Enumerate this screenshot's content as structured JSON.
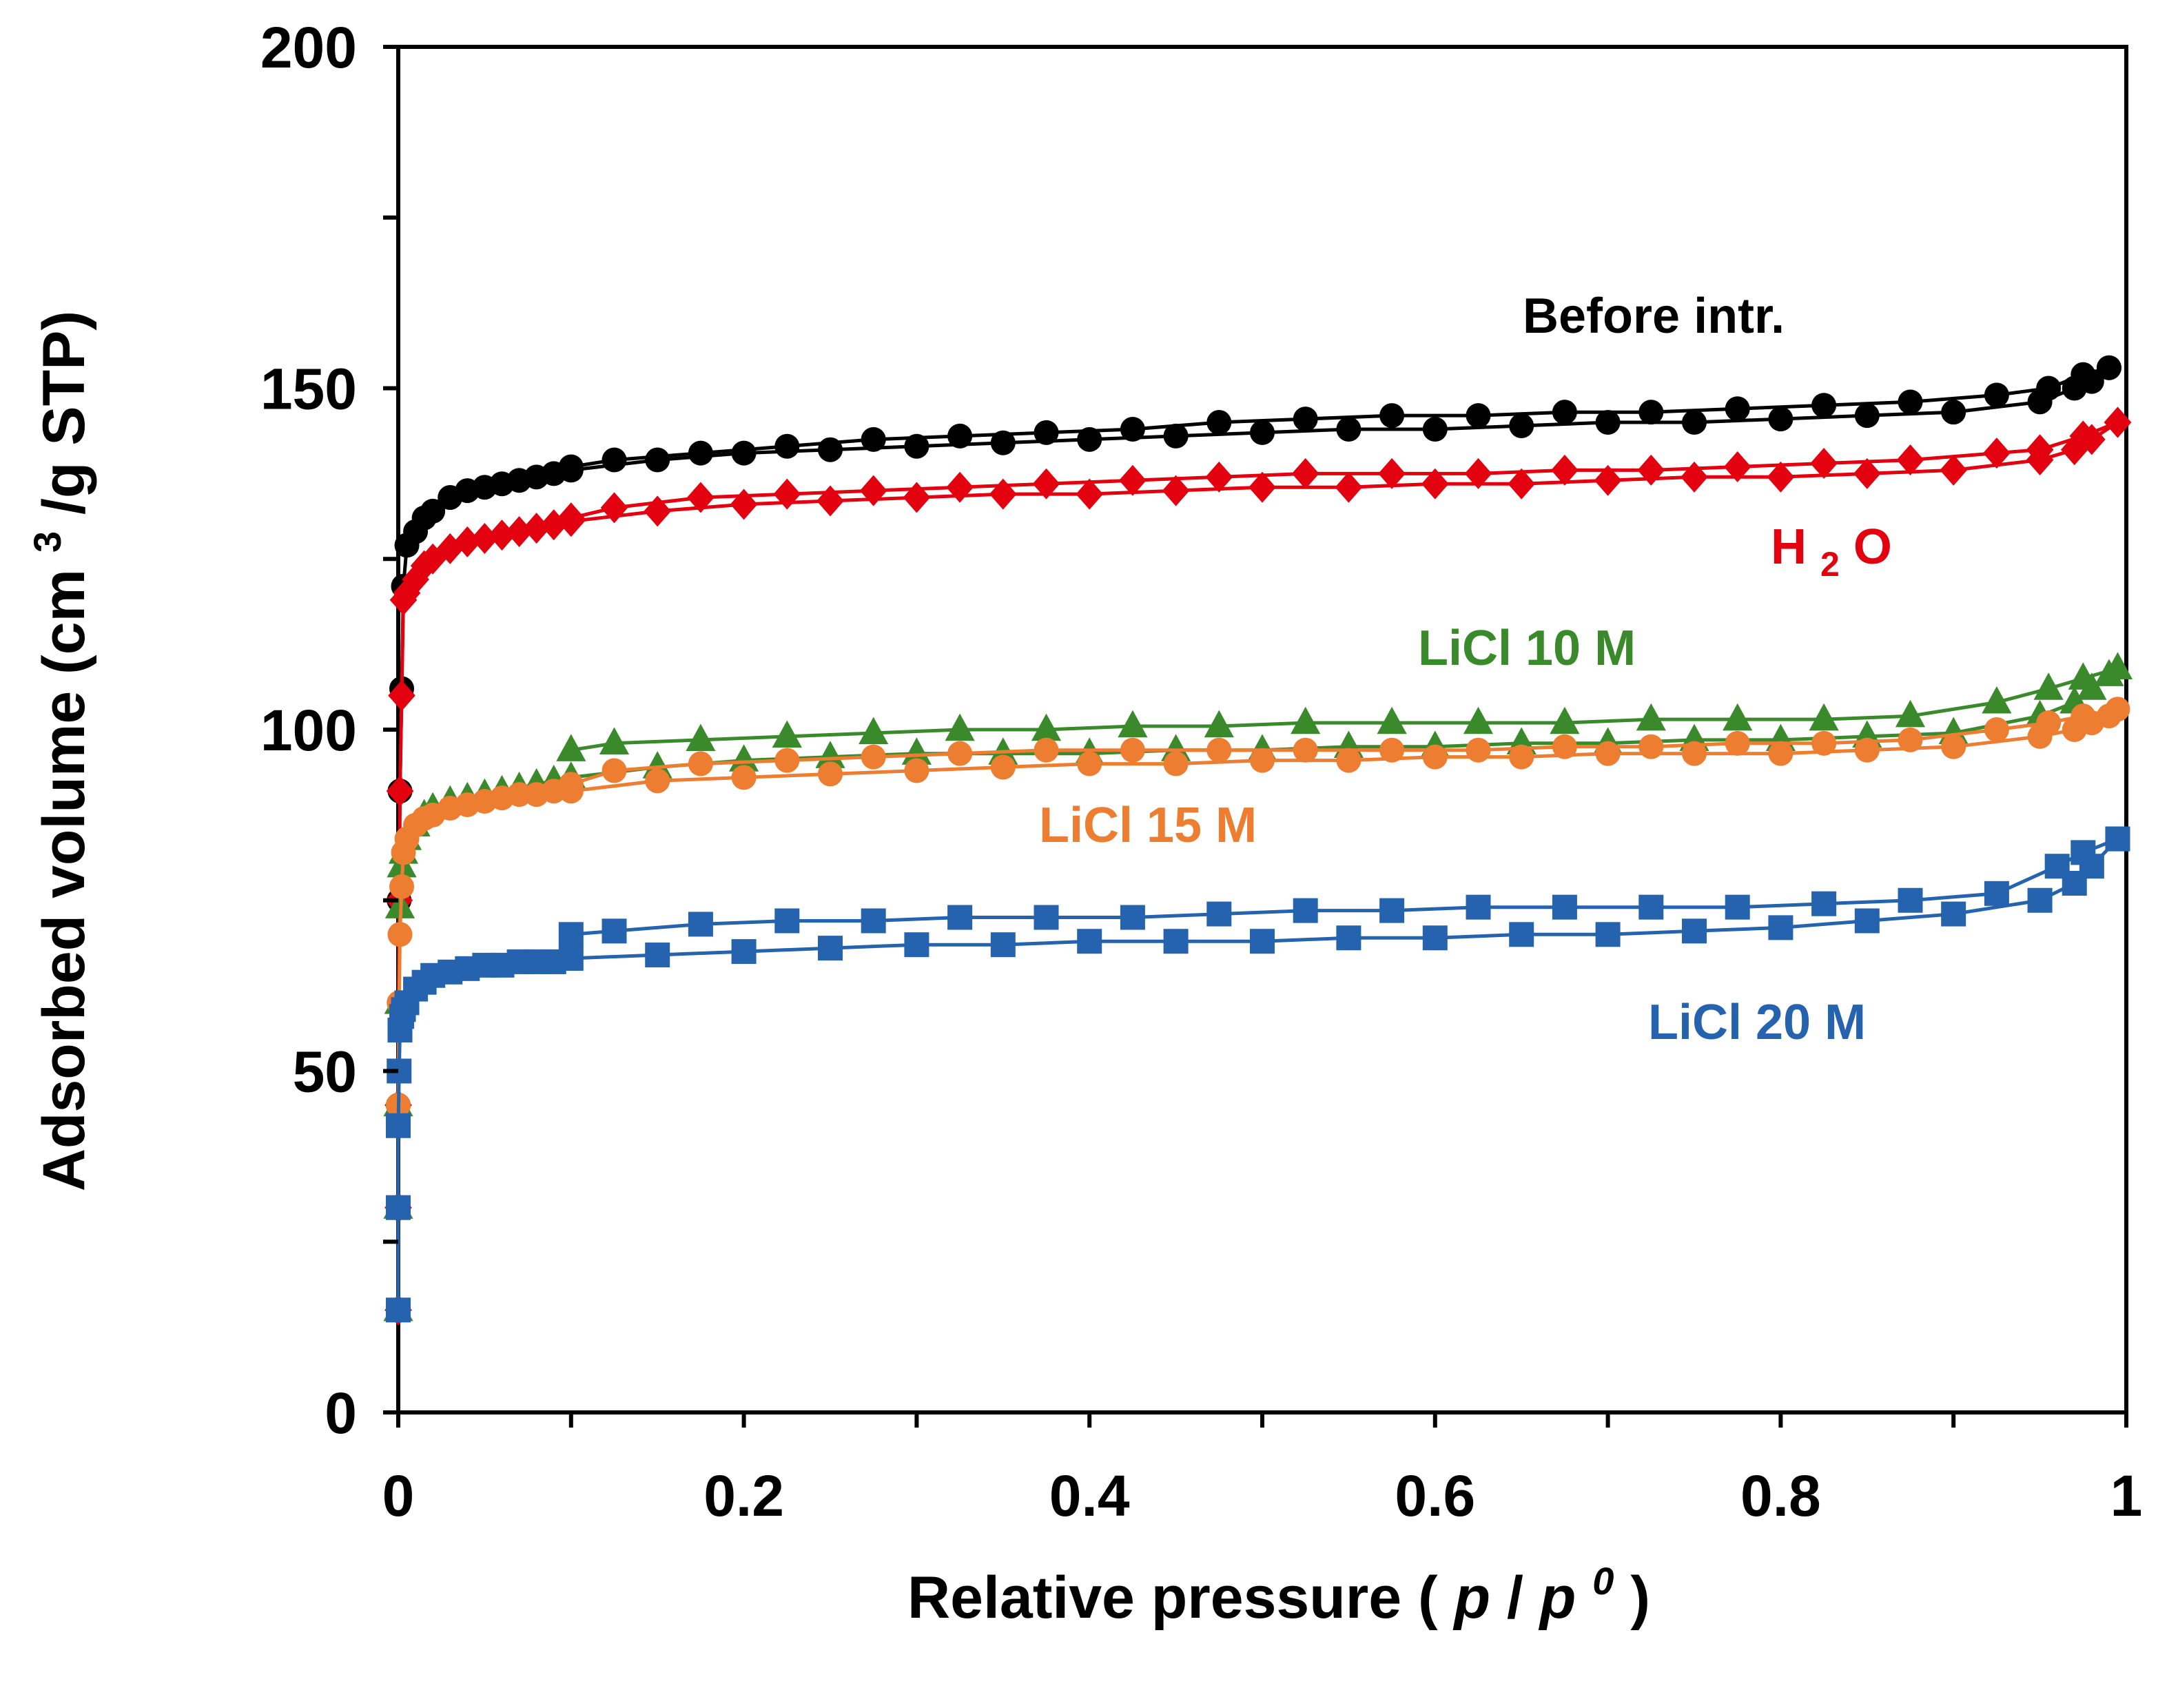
{
  "chart_data": {
    "type": "scatter",
    "title": "",
    "xlabel": "Relative pressure (p/p0)",
    "xlabel_parts": {
      "lead": "Relative pressure (",
      "p1": "p",
      "slash": "/",
      "p2": "p",
      "sup": "0",
      "close": ")"
    },
    "ylabel": "Adsorbed volume (cm3/g STP)",
    "ylabel_parts": {
      "lead": "Adsorbed volume (cm",
      "sup": "3",
      "tail": "/g STP)"
    },
    "xlim": [
      0,
      1
    ],
    "ylim": [
      0,
      200
    ],
    "x_ticks": [
      0,
      0.2,
      0.4,
      0.6,
      0.8,
      1
    ],
    "x_tick_labels": [
      "0",
      "0.2",
      "0.4",
      "0.6",
      "0.8",
      "1"
    ],
    "y_ticks": [
      0,
      50,
      100,
      150,
      200
    ],
    "y_tick_labels": [
      "0",
      "50",
      "100",
      "150",
      "200"
    ],
    "grid": false,
    "legend": "inline labels",
    "series": [
      {
        "name": "Before intr.",
        "label_parts": {
          "text": "Before intr."
        },
        "color": "#000000",
        "marker": "circle",
        "adsorption": [
          [
            0,
            15
          ],
          [
            0,
            30
          ],
          [
            0,
            45
          ],
          [
            0.0005,
            75
          ],
          [
            0.001,
            91
          ],
          [
            0.002,
            106
          ],
          [
            0.003,
            121
          ],
          [
            0.005,
            127
          ],
          [
            0.01,
            129
          ],
          [
            0.015,
            131
          ],
          [
            0.02,
            132
          ],
          [
            0.03,
            134
          ],
          [
            0.04,
            135
          ],
          [
            0.05,
            135.5
          ],
          [
            0.06,
            136
          ],
          [
            0.07,
            136.5
          ],
          [
            0.08,
            137
          ],
          [
            0.09,
            137.5
          ],
          [
            0.1,
            138
          ],
          [
            0.15,
            139.5
          ],
          [
            0.2,
            140.5
          ],
          [
            0.25,
            141
          ],
          [
            0.3,
            141.5
          ],
          [
            0.35,
            142
          ],
          [
            0.4,
            142.5
          ],
          [
            0.45,
            143
          ],
          [
            0.5,
            143.5
          ],
          [
            0.55,
            144
          ],
          [
            0.6,
            144
          ],
          [
            0.65,
            144.5
          ],
          [
            0.7,
            145
          ],
          [
            0.75,
            145
          ],
          [
            0.8,
            145.5
          ],
          [
            0.85,
            146
          ],
          [
            0.9,
            146.5
          ],
          [
            0.95,
            148
          ],
          [
            0.97,
            150
          ],
          [
            0.98,
            151
          ],
          [
            0.99,
            153
          ]
        ],
        "desorption": [
          [
            0.99,
            153
          ],
          [
            0.975,
            152
          ],
          [
            0.955,
            150
          ],
          [
            0.925,
            149
          ],
          [
            0.875,
            148
          ],
          [
            0.825,
            147.5
          ],
          [
            0.775,
            147
          ],
          [
            0.725,
            146.5
          ],
          [
            0.675,
            146.5
          ],
          [
            0.625,
            146
          ],
          [
            0.575,
            146
          ],
          [
            0.525,
            145.5
          ],
          [
            0.475,
            145
          ],
          [
            0.425,
            144
          ],
          [
            0.375,
            143.5
          ],
          [
            0.325,
            143
          ],
          [
            0.275,
            142.5
          ],
          [
            0.225,
            141.5
          ],
          [
            0.175,
            140.5
          ],
          [
            0.125,
            139.5
          ],
          [
            0.1,
            138.5
          ]
        ]
      },
      {
        "name": "H2O",
        "label_parts": {
          "lead": "H",
          "sub": "2",
          "tail": "O"
        },
        "color": "#E3000F",
        "marker": "diamond",
        "adsorption": [
          [
            0,
            15
          ],
          [
            0,
            30
          ],
          [
            0,
            45
          ],
          [
            0.0005,
            75
          ],
          [
            0.001,
            91
          ],
          [
            0.002,
            105
          ],
          [
            0.003,
            119
          ],
          [
            0.005,
            120
          ],
          [
            0.01,
            122
          ],
          [
            0.015,
            124
          ],
          [
            0.02,
            125
          ],
          [
            0.03,
            126.5
          ],
          [
            0.04,
            127.5
          ],
          [
            0.05,
            128
          ],
          [
            0.06,
            128.5
          ],
          [
            0.07,
            129
          ],
          [
            0.08,
            129.5
          ],
          [
            0.09,
            130
          ],
          [
            0.1,
            130.5
          ],
          [
            0.15,
            132
          ],
          [
            0.2,
            133
          ],
          [
            0.25,
            133.5
          ],
          [
            0.3,
            134
          ],
          [
            0.35,
            134.5
          ],
          [
            0.4,
            134.5
          ],
          [
            0.45,
            135
          ],
          [
            0.5,
            135.5
          ],
          [
            0.55,
            135.5
          ],
          [
            0.6,
            136
          ],
          [
            0.65,
            136
          ],
          [
            0.7,
            136.5
          ],
          [
            0.75,
            137
          ],
          [
            0.8,
            137
          ],
          [
            0.85,
            137.5
          ],
          [
            0.9,
            138
          ],
          [
            0.95,
            139.5
          ],
          [
            0.97,
            141
          ],
          [
            0.98,
            142.5
          ],
          [
            0.995,
            145
          ]
        ],
        "desorption": [
          [
            0.995,
            145
          ],
          [
            0.975,
            143
          ],
          [
            0.95,
            141
          ],
          [
            0.925,
            140.5
          ],
          [
            0.875,
            139.5
          ],
          [
            0.825,
            139
          ],
          [
            0.775,
            138.5
          ],
          [
            0.725,
            138
          ],
          [
            0.675,
            138
          ],
          [
            0.625,
            137.5
          ],
          [
            0.575,
            137.5
          ],
          [
            0.525,
            137.5
          ],
          [
            0.475,
            137
          ],
          [
            0.425,
            136.5
          ],
          [
            0.375,
            136
          ],
          [
            0.325,
            135.5
          ],
          [
            0.275,
            135
          ],
          [
            0.225,
            134.5
          ],
          [
            0.175,
            134
          ],
          [
            0.125,
            132.5
          ],
          [
            0.1,
            131
          ]
        ]
      },
      {
        "name": "LiCl 10 M",
        "label_parts": {
          "text": "LiCl 10 M"
        },
        "color": "#3A8A2C",
        "marker": "triangle",
        "adsorption": [
          [
            0,
            15
          ],
          [
            0,
            30
          ],
          [
            0,
            45
          ],
          [
            0.0005,
            60
          ],
          [
            0.001,
            74
          ],
          [
            0.002,
            80
          ],
          [
            0.003,
            82
          ],
          [
            0.005,
            84
          ],
          [
            0.01,
            86
          ],
          [
            0.015,
            87.5
          ],
          [
            0.02,
            88.5
          ],
          [
            0.03,
            89.5
          ],
          [
            0.04,
            90
          ],
          [
            0.05,
            90.5
          ],
          [
            0.06,
            91
          ],
          [
            0.07,
            91.5
          ],
          [
            0.08,
            92
          ],
          [
            0.09,
            92.5
          ],
          [
            0.1,
            93
          ],
          [
            0.15,
            94.5
          ],
          [
            0.2,
            95.5
          ],
          [
            0.25,
            96
          ],
          [
            0.3,
            96.5
          ],
          [
            0.35,
            96.5
          ],
          [
            0.4,
            96.5
          ],
          [
            0.45,
            97
          ],
          [
            0.5,
            97
          ],
          [
            0.55,
            97.5
          ],
          [
            0.6,
            97.5
          ],
          [
            0.65,
            98
          ],
          [
            0.7,
            98
          ],
          [
            0.75,
            98.5
          ],
          [
            0.8,
            98.5
          ],
          [
            0.85,
            99
          ],
          [
            0.9,
            99.5
          ],
          [
            0.95,
            102
          ],
          [
            0.97,
            104
          ],
          [
            0.98,
            106
          ],
          [
            0.99,
            108
          ]
        ],
        "desorption": [
          [
            0.995,
            109
          ],
          [
            0.975,
            107.5
          ],
          [
            0.955,
            106
          ],
          [
            0.925,
            104
          ],
          [
            0.875,
            102
          ],
          [
            0.825,
            101.5
          ],
          [
            0.775,
            101.5
          ],
          [
            0.725,
            101.5
          ],
          [
            0.675,
            101
          ],
          [
            0.625,
            101
          ],
          [
            0.575,
            101
          ],
          [
            0.525,
            101
          ],
          [
            0.475,
            100.5
          ],
          [
            0.425,
            100.5
          ],
          [
            0.375,
            100
          ],
          [
            0.325,
            100
          ],
          [
            0.275,
            99.5
          ],
          [
            0.225,
            99
          ],
          [
            0.175,
            98.5
          ],
          [
            0.125,
            98
          ],
          [
            0.1,
            97
          ]
        ]
      },
      {
        "name": "LiCl 15 M",
        "label_parts": {
          "text": "LiCl 15 M"
        },
        "color": "#ED7D31",
        "marker": "circle",
        "adsorption": [
          [
            0,
            15
          ],
          [
            0,
            30
          ],
          [
            0,
            45
          ],
          [
            0.0005,
            60
          ],
          [
            0.001,
            70
          ],
          [
            0.002,
            77
          ],
          [
            0.003,
            82
          ],
          [
            0.005,
            84
          ],
          [
            0.01,
            86
          ],
          [
            0.015,
            87
          ],
          [
            0.02,
            87.5
          ],
          [
            0.03,
            88.5
          ],
          [
            0.04,
            89
          ],
          [
            0.05,
            89.5
          ],
          [
            0.06,
            90
          ],
          [
            0.07,
            90.5
          ],
          [
            0.08,
            90.5
          ],
          [
            0.09,
            91
          ],
          [
            0.1,
            91
          ],
          [
            0.15,
            92.5
          ],
          [
            0.2,
            93
          ],
          [
            0.25,
            93.5
          ],
          [
            0.3,
            94
          ],
          [
            0.35,
            94.5
          ],
          [
            0.4,
            95
          ],
          [
            0.45,
            95
          ],
          [
            0.5,
            95.5
          ],
          [
            0.55,
            95.5
          ],
          [
            0.6,
            96
          ],
          [
            0.65,
            96
          ],
          [
            0.7,
            96.5
          ],
          [
            0.75,
            96.5
          ],
          [
            0.8,
            96.5
          ],
          [
            0.85,
            97
          ],
          [
            0.9,
            97.5
          ],
          [
            0.95,
            99
          ],
          [
            0.97,
            100
          ],
          [
            0.98,
            101
          ],
          [
            0.99,
            102
          ]
        ],
        "desorption": [
          [
            0.995,
            103
          ],
          [
            0.975,
            102
          ],
          [
            0.955,
            101
          ],
          [
            0.925,
            100
          ],
          [
            0.875,
            98.5
          ],
          [
            0.825,
            98
          ],
          [
            0.775,
            98
          ],
          [
            0.725,
            97.5
          ],
          [
            0.675,
            97.5
          ],
          [
            0.625,
            97
          ],
          [
            0.575,
            97
          ],
          [
            0.525,
            97
          ],
          [
            0.475,
            97
          ],
          [
            0.425,
            97
          ],
          [
            0.375,
            97
          ],
          [
            0.325,
            96.5
          ],
          [
            0.275,
            96
          ],
          [
            0.225,
            95.5
          ],
          [
            0.175,
            95
          ],
          [
            0.125,
            94
          ],
          [
            0.1,
            92
          ]
        ]
      },
      {
        "name": "LiCl 20 M",
        "label_parts": {
          "text": "LiCl 20 M"
        },
        "color": "#2563AE",
        "marker": "square",
        "adsorption": [
          [
            0,
            15
          ],
          [
            0,
            30
          ],
          [
            0,
            42
          ],
          [
            0.0005,
            50
          ],
          [
            0.001,
            56
          ],
          [
            0.002,
            58
          ],
          [
            0.003,
            59
          ],
          [
            0.005,
            60
          ],
          [
            0.01,
            62
          ],
          [
            0.015,
            63
          ],
          [
            0.02,
            64
          ],
          [
            0.03,
            64.5
          ],
          [
            0.04,
            65
          ],
          [
            0.05,
            65.5
          ],
          [
            0.06,
            65.5
          ],
          [
            0.07,
            66
          ],
          [
            0.08,
            66
          ],
          [
            0.09,
            66
          ],
          [
            0.1,
            66.5
          ],
          [
            0.15,
            67
          ],
          [
            0.2,
            67.5
          ],
          [
            0.25,
            68
          ],
          [
            0.3,
            68.5
          ],
          [
            0.35,
            68.5
          ],
          [
            0.4,
            69
          ],
          [
            0.45,
            69
          ],
          [
            0.5,
            69
          ],
          [
            0.55,
            69.5
          ],
          [
            0.6,
            69.5
          ],
          [
            0.65,
            70
          ],
          [
            0.7,
            70
          ],
          [
            0.75,
            70.5
          ],
          [
            0.8,
            71
          ],
          [
            0.85,
            72
          ],
          [
            0.9,
            73
          ],
          [
            0.95,
            75
          ],
          [
            0.97,
            77.5
          ],
          [
            0.98,
            80
          ],
          [
            0.995,
            84
          ]
        ],
        "desorption": [
          [
            0.995,
            84
          ],
          [
            0.975,
            82
          ],
          [
            0.96,
            80
          ],
          [
            0.925,
            76
          ],
          [
            0.875,
            75
          ],
          [
            0.825,
            74.5
          ],
          [
            0.775,
            74
          ],
          [
            0.725,
            74
          ],
          [
            0.675,
            74
          ],
          [
            0.625,
            74
          ],
          [
            0.575,
            73.5
          ],
          [
            0.525,
            73.5
          ],
          [
            0.475,
            73
          ],
          [
            0.425,
            72.5
          ],
          [
            0.375,
            72.5
          ],
          [
            0.325,
            72.5
          ],
          [
            0.275,
            72
          ],
          [
            0.225,
            72
          ],
          [
            0.175,
            71.5
          ],
          [
            0.125,
            70.5
          ],
          [
            0.1,
            70
          ]
        ]
      }
    ]
  }
}
